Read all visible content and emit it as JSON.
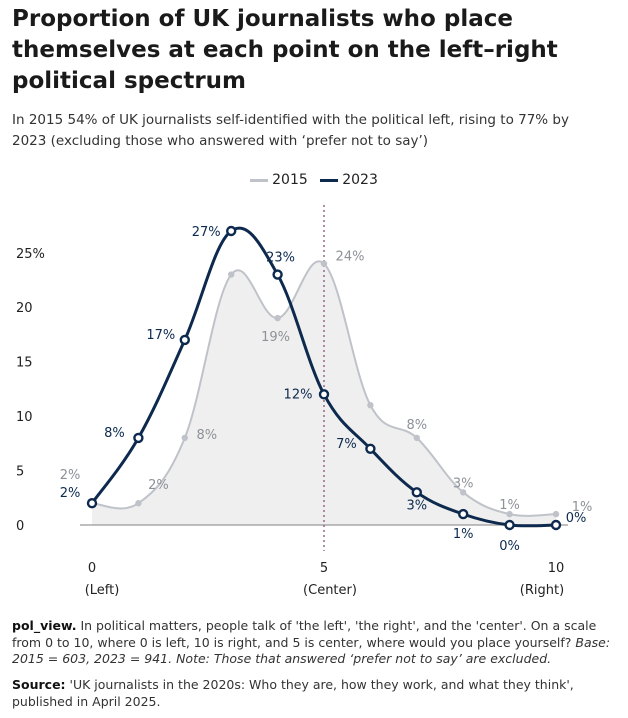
{
  "title": "Proportion of UK journalists who place themselves at each point on the left–right political spectrum",
  "subtitle": "In 2015 54% of UK journalists self-identified with the political left, rising to 77% by 2023 (excluding those who answered with ‘prefer not to say’)",
  "note": {
    "label": "pol_view.",
    "text": "In political matters, people talk of 'the left', 'the right', and the 'center'. On a scale from 0 to 10, where 0 is left, 10 is right, and 5 is center, where would you place yourself?",
    "italic": "Base: 2015 = 603, 2023 = 941. Note: Those that answered ‘prefer not to say’ are excluded."
  },
  "source": {
    "label": "Source:",
    "text": "'UK journalists in the 2020s: Who they are, how they work, and what they think', published in April 2025."
  },
  "colors": {
    "y2015": "#bfc3c9",
    "y2023": "#0d2a4e",
    "area": "#efefef",
    "center_line": "#8a4f7d",
    "axis": "#333333"
  },
  "chart_data": {
    "type": "line",
    "x": [
      0,
      1,
      2,
      3,
      4,
      5,
      6,
      7,
      8,
      9,
      10
    ],
    "x_ticks": [
      {
        "x": 0,
        "label": "0",
        "sub": "(Left)"
      },
      {
        "x": 5,
        "label": "5",
        "sub": "(Center)"
      },
      {
        "x": 10,
        "label": "10",
        "sub": "(Right)"
      }
    ],
    "y_ticks": [
      "25%",
      "20",
      "15",
      "10",
      "5",
      "0"
    ],
    "y_tick_values": [
      25,
      20,
      15,
      10,
      5,
      0
    ],
    "ylim": [
      0,
      27
    ],
    "center_marker": 5,
    "series": [
      {
        "name": "2015",
        "values": [
          2,
          2,
          8,
          23,
          19,
          24,
          11,
          8,
          3,
          1,
          1
        ],
        "labels": [
          "2%",
          "2%",
          "8%",
          "",
          "19%",
          "24%",
          "",
          "8%",
          "3%",
          "1%",
          "1%"
        ]
      },
      {
        "name": "2023",
        "values": [
          2,
          8,
          17,
          27,
          23,
          12,
          7,
          3,
          1,
          0,
          0
        ],
        "labels": [
          "2%",
          "8%",
          "17%",
          "27%",
          "23%",
          "12%",
          "7%",
          "3%",
          "1%",
          "0%",
          "0%"
        ]
      }
    ]
  }
}
